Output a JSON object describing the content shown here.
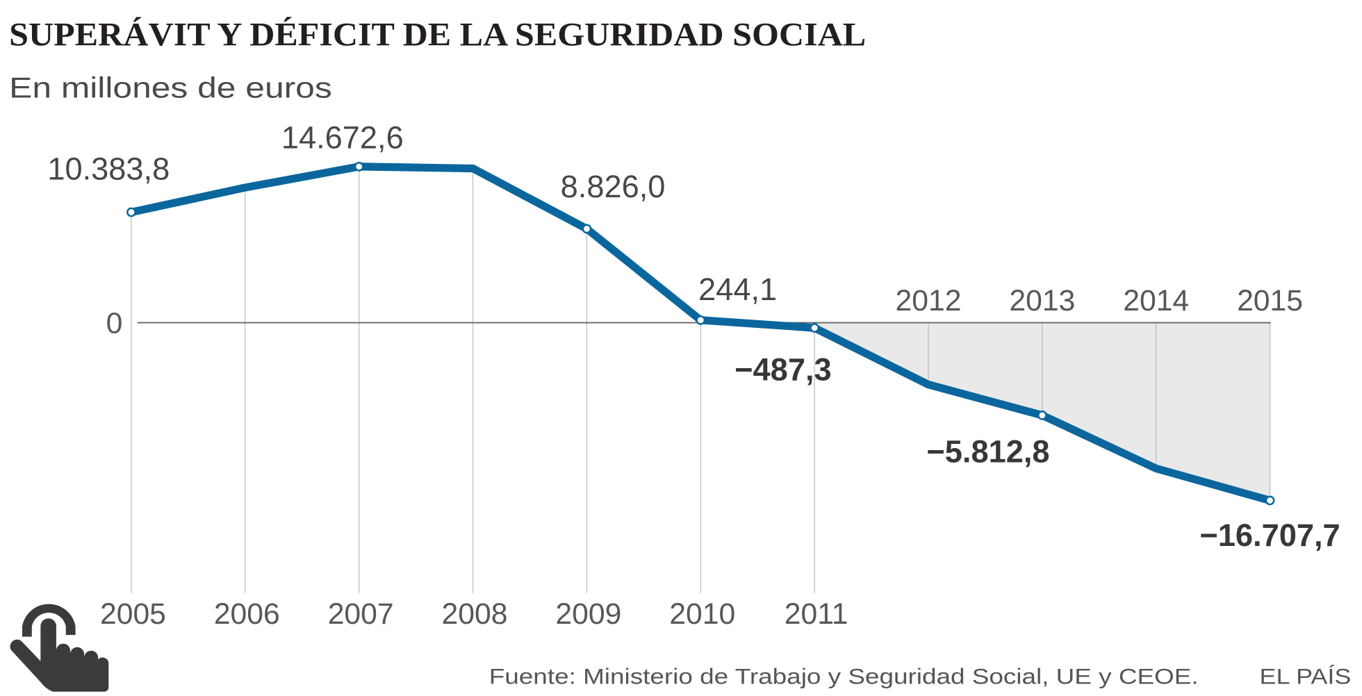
{
  "chart_data": {
    "type": "line",
    "title": "SUPERÁVIT Y DÉFICIT DE LA SEGURIDAD SOCIAL",
    "subtitle": "En millones de euros",
    "x": [
      2005,
      2006,
      2007,
      2008,
      2009,
      2010,
      2011,
      2012,
      2013,
      2014,
      2015
    ],
    "x_tick_labels": [
      "2005",
      "2006",
      "2007",
      "2008",
      "2009",
      "2010",
      "2011",
      "2012",
      "2013",
      "2014",
      "2015"
    ],
    "values": [
      10383.8,
      12700,
      14672.6,
      14500,
      8826.0,
      244.1,
      -487.3,
      -5812.8,
      -8700,
      -13700,
      -16707.7
    ],
    "y_tick_labels": [
      "0"
    ],
    "ylim": [
      -20000,
      16000
    ],
    "data_labels": [
      {
        "year": 2005,
        "text": "10.383,8",
        "bold": false
      },
      {
        "year": 2007,
        "text": "14.672,6",
        "bold": false
      },
      {
        "year": 2009,
        "text": "8.826,0",
        "bold": false
      },
      {
        "year": 2010,
        "text": "244,1",
        "bold": false
      },
      {
        "year": 2011,
        "text": "−487,3",
        "bold": true
      },
      {
        "year": 2012,
        "text": "−5.812,8",
        "bold": true
      },
      {
        "year": 2015,
        "text": "−16.707,7",
        "bold": true
      }
    ],
    "marked_years": [
      2005,
      2007,
      2009,
      2010,
      2011,
      2013,
      2015
    ],
    "line_color": "#0b669e",
    "deficit_fill": "#e9e9e9",
    "grid": true
  },
  "footer": {
    "source": "Fuente: Ministerio de Trabajo y Seguridad Social, UE y CEOE.",
    "brand": "EL PAÍS"
  },
  "icons": {
    "interaction": "pointing-hand-icon"
  }
}
